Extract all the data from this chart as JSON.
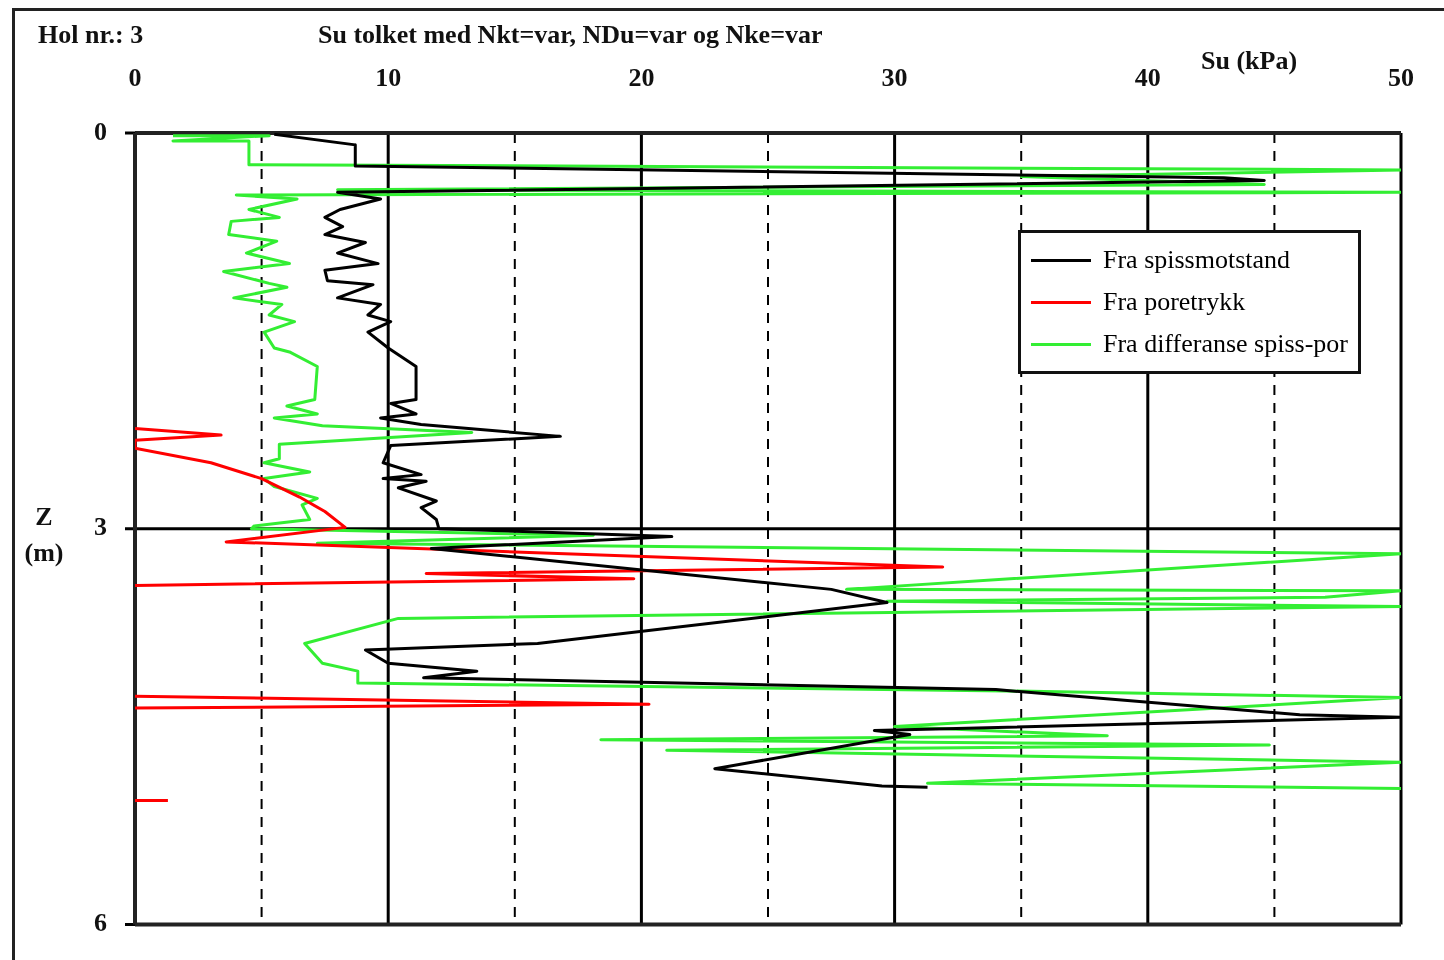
{
  "chart_data": {
    "type": "line",
    "title": "Su tolket med Nkt=var, NDu=var og Nke=var",
    "annotations": [
      "Hol nr.: 3"
    ],
    "xlabel": "Su (kPa)",
    "ylabel": "Z (m)",
    "xlim": [
      0,
      50
    ],
    "xticks": [
      0,
      {
        "value": 5,
        "label": null
      },
      10,
      {
        "value": 15,
        "label": null
      },
      20,
      {
        "value": 25,
        "label": null
      },
      30,
      {
        "value": 35,
        "label": null
      },
      40,
      {
        "value": 45,
        "label": null
      },
      50
    ],
    "ylim": [
      6,
      0
    ],
    "yticks": [
      0,
      3,
      6
    ],
    "grid": true,
    "legend": "top right",
    "marker": "none",
    "line_style": "solid",
    "series": [
      {
        "name": "Fra spissmotstand",
        "color": "#000000",
        "x": [
          5.5,
          8.7,
          8.7,
          43,
          44.6,
          8,
          9.7,
          8.1,
          7.5,
          8.2,
          7.5,
          9.1,
          8.0,
          9.6,
          7.5,
          7.6,
          9.4,
          8.0,
          9.7,
          9.2,
          10.1,
          9.2,
          10.0,
          11.1,
          11.1,
          10.1,
          11.1,
          9.7,
          11.3,
          16.8,
          10.1,
          9.8,
          11.3,
          9.8,
          11.5,
          10.4,
          11.9,
          11.3,
          11.9,
          12,
          21.2,
          11.7,
          27.5,
          29.7,
          15.9,
          9.1,
          10.0,
          13.5,
          11.4,
          34,
          46,
          50,
          29.2,
          30.6,
          22.9,
          29.5,
          31.3
        ],
        "values": [
          0.01,
          0.09,
          0.25,
          0.34,
          0.36,
          0.45,
          0.5,
          0.58,
          0.64,
          0.71,
          0.77,
          0.83,
          0.91,
          0.99,
          1.04,
          1.12,
          1.15,
          1.25,
          1.3,
          1.38,
          1.43,
          1.51,
          1.63,
          1.77,
          2.02,
          2.05,
          2.13,
          2.16,
          2.21,
          2.3,
          2.37,
          2.5,
          2.59,
          2.62,
          2.64,
          2.69,
          2.79,
          2.84,
          2.93,
          3.0,
          3.06,
          3.15,
          3.46,
          3.56,
          3.87,
          3.92,
          4.02,
          4.08,
          4.13,
          4.22,
          4.41,
          4.43,
          4.53,
          4.56,
          4.82,
          4.95,
          4.96
        ]
      },
      {
        "name": "Fra poretrykk",
        "color": "#ff0000",
        "x": [
          0,
          3.4,
          0,
          0,
          3,
          5,
          6.5,
          7.5,
          8.3,
          3.6,
          31.9,
          11.5,
          19.7,
          0,
          null,
          0,
          20.3,
          0,
          null,
          0,
          1.3
        ],
        "values": [
          2.24,
          2.29,
          2.33,
          2.39,
          2.5,
          2.62,
          2.76,
          2.87,
          2.99,
          3.1,
          3.29,
          3.34,
          3.38,
          3.43,
          null,
          4.27,
          4.33,
          4.36,
          null,
          5.06,
          5.06
        ]
      },
      {
        "name": "Fra differanse spiss-por",
        "color": "#33ee33",
        "x": [
          1.5,
          5.3,
          1.5,
          4.5,
          4.5,
          50,
          35,
          44.6,
          8,
          50,
          4,
          6.4,
          4.5,
          5.7,
          3.8,
          3.7,
          5.6,
          4.4,
          6.1,
          3.5,
          5.3,
          6.0,
          3.9,
          5.8,
          5.3,
          6.3,
          5.1,
          5.5,
          6.1,
          7.2,
          7.1,
          6.0,
          7.2,
          5.5,
          7.4,
          13.3,
          5.7,
          5.7,
          5.1,
          6.9,
          5.1,
          5.5,
          7.2,
          6.6,
          6.9,
          4.7,
          4.6,
          18.1,
          7.2,
          50,
          28.1,
          50,
          47,
          29.7,
          50,
          10.4,
          6.7,
          7.4,
          8.8,
          8.8,
          34.4,
          50,
          30,
          38.4,
          18.4,
          44.8,
          21,
          50,
          31.3,
          50
        ],
        "values": [
          0.02,
          0.02,
          0.06,
          0.06,
          0.24,
          0.28,
          0.33,
          0.39,
          0.43,
          0.45,
          0.47,
          0.5,
          0.58,
          0.64,
          0.67,
          0.77,
          0.82,
          0.91,
          0.99,
          1.05,
          1.14,
          1.17,
          1.25,
          1.3,
          1.38,
          1.43,
          1.51,
          1.63,
          1.66,
          1.77,
          2.02,
          2.07,
          2.13,
          2.16,
          2.22,
          2.27,
          2.36,
          2.47,
          2.5,
          2.57,
          2.62,
          2.68,
          2.77,
          2.82,
          2.93,
          2.98,
          3.0,
          3.05,
          3.11,
          3.19,
          3.46,
          3.47,
          3.52,
          3.55,
          3.59,
          3.68,
          3.87,
          4.02,
          4.08,
          4.17,
          4.23,
          4.28,
          4.5,
          4.57,
          4.6,
          4.64,
          4.68,
          4.77,
          4.93,
          4.97
        ]
      }
    ]
  }
}
